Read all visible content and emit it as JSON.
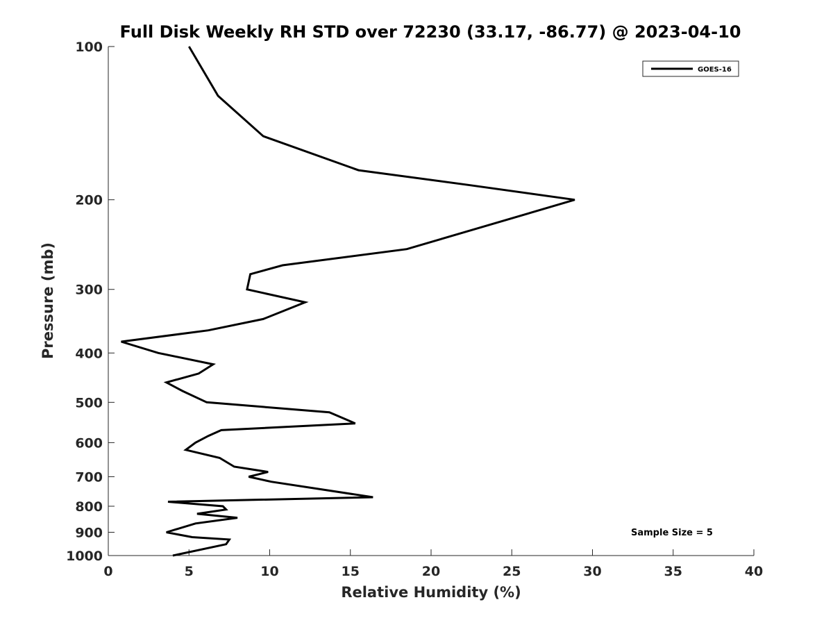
{
  "chart_data": {
    "type": "line",
    "title": "Full Disk Weekly RH STD over 72230 (33.17, -86.77) @ 2023-04-10",
    "xlabel": "Relative Humidity (%)",
    "ylabel": "Pressure (mb)",
    "xlim": [
      0,
      40
    ],
    "ylim": [
      1000,
      100
    ],
    "yscale": "log",
    "xticks": [
      0,
      5,
      10,
      15,
      20,
      25,
      30,
      35,
      40
    ],
    "yticks": [
      100,
      200,
      300,
      400,
      500,
      600,
      700,
      800,
      900,
      1000
    ],
    "grid": false,
    "legend_position": "top-right",
    "annotation": "Sample Size = 5",
    "series": [
      {
        "name": "GOES-16",
        "color": "#000000",
        "points": [
          [
            5.0,
            100
          ],
          [
            6.8,
            125
          ],
          [
            9.6,
            150
          ],
          [
            15.5,
            175
          ],
          [
            22.3,
            187
          ],
          [
            28.9,
            200
          ],
          [
            18.5,
            250
          ],
          [
            10.8,
            269
          ],
          [
            8.8,
            280
          ],
          [
            8.6,
            300
          ],
          [
            12.2,
            318
          ],
          [
            9.6,
            343
          ],
          [
            6.2,
            361
          ],
          [
            0.8,
            380
          ],
          [
            3.1,
            400
          ],
          [
            6.5,
            421
          ],
          [
            5.6,
            439
          ],
          [
            3.6,
            457
          ],
          [
            4.6,
            475
          ],
          [
            6.1,
            500
          ],
          [
            13.7,
            523
          ],
          [
            15.3,
            550
          ],
          [
            7.0,
            567
          ],
          [
            6.2,
            582
          ],
          [
            5.4,
            600
          ],
          [
            4.8,
            620
          ],
          [
            6.9,
            643
          ],
          [
            7.8,
            669
          ],
          [
            9.9,
            685
          ],
          [
            8.7,
            700
          ],
          [
            10.1,
            716
          ],
          [
            16.4,
            768
          ],
          [
            3.7,
            784
          ],
          [
            7.1,
            800
          ],
          [
            7.3,
            812
          ],
          [
            5.5,
            828
          ],
          [
            8.0,
            843
          ],
          [
            5.4,
            865
          ],
          [
            3.6,
            900
          ],
          [
            5.2,
            920
          ],
          [
            7.5,
            930
          ],
          [
            7.3,
            950
          ],
          [
            4.0,
            1000
          ]
        ]
      }
    ]
  }
}
